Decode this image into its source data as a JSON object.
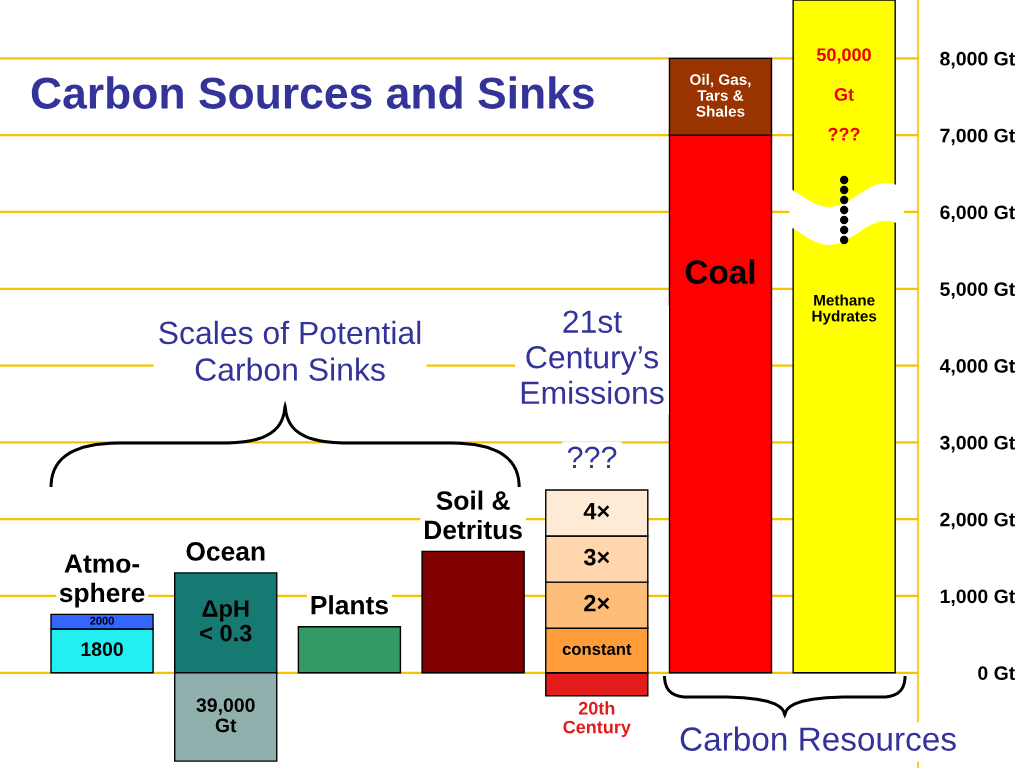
{
  "chart_data": {
    "type": "bar",
    "title": "Carbon Sources and Sinks",
    "stacked": true,
    "categories": [
      "Atmo-\nsphere",
      "Ocean",
      "Plants",
      "Soil &\nDetritus",
      null,
      null,
      null
    ],
    "series": [
      {
        "name": "1800",
        "color": "#22f0f0",
        "values": [
          570,
          null,
          null,
          null,
          null,
          null,
          null
        ]
      },
      {
        "name": "2000",
        "color": "#3366ff",
        "values": [
          190,
          null,
          null,
          null,
          null,
          null,
          null
        ]
      },
      {
        "name": "ΔpH\n< 0.3",
        "color": "#167a72",
        "values": [
          null,
          1300,
          null,
          null,
          null,
          null,
          null
        ]
      },
      {
        "name": "39,000\nGt",
        "color": "#8fb0ad",
        "values": [
          null,
          -1150,
          null,
          null,
          null,
          null,
          null
        ]
      },
      {
        "color": "#339966",
        "values": [
          null,
          null,
          600,
          null,
          null,
          null,
          null
        ]
      },
      {
        "color": "#800000",
        "values": [
          null,
          null,
          null,
          1580,
          null,
          null,
          null
        ]
      },
      {
        "name": "20th\nCentury",
        "color": "#e41b1b",
        "values": [
          null,
          null,
          null,
          null,
          -300,
          null,
          null
        ]
      },
      {
        "name": "constant",
        "color": "#ff9d3a",
        "values": [
          null,
          null,
          null,
          null,
          580,
          null,
          null
        ]
      },
      {
        "name": "2×",
        "color": "#ffbd7a",
        "values": [
          null,
          null,
          null,
          null,
          600,
          null,
          null
        ]
      },
      {
        "name": "3×",
        "color": "#ffd6ad",
        "values": [
          null,
          null,
          null,
          null,
          600,
          null,
          null
        ]
      },
      {
        "name": "4×",
        "color": "#ffead5",
        "values": [
          null,
          null,
          null,
          null,
          600,
          null,
          null
        ]
      },
      {
        "name": "Coal",
        "color": "#ff0000",
        "values": [
          null,
          null,
          null,
          null,
          null,
          7000,
          null
        ]
      },
      {
        "name": "Oil, Gas,\nTars &\nShales",
        "color": "#993300",
        "values": [
          null,
          null,
          null,
          null,
          null,
          1000,
          null
        ]
      },
      {
        "name": "Methane\nHydrates",
        "color": "#ffff00",
        "values": [
          null,
          null,
          null,
          null,
          null,
          null,
          8760
        ]
      }
    ],
    "ylim": [
      -1240,
      8760
    ],
    "yticks": [
      {
        "value": 0,
        "label": "0 Gt"
      },
      {
        "value": 1000,
        "label": "1,000 Gt"
      },
      {
        "value": 2000,
        "label": "2,000 Gt"
      },
      {
        "value": 3000,
        "label": "3,000 Gt"
      },
      {
        "value": 4000,
        "label": "4,000 Gt"
      },
      {
        "value": 5000,
        "label": "5,000 Gt"
      },
      {
        "value": 6000,
        "label": "6,000 Gt"
      },
      {
        "value": 7000,
        "label": "7,000 Gt"
      },
      {
        "value": 8000,
        "label": "8,000 Gt"
      }
    ],
    "grid": "y",
    "annotations": [
      "Scales of Potential\nCarbon Sinks",
      "21st\nCentury’s\nEmissions",
      "???",
      "50,000\nGt\n???",
      "Carbon Resources"
    ]
  }
}
